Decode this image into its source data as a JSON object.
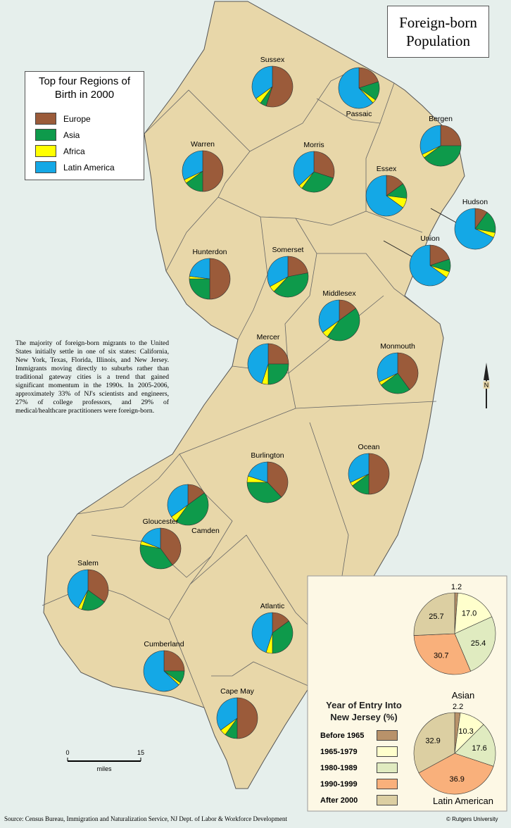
{
  "title": "Foreign-born Population",
  "legend": {
    "title": "Top four Regions of Birth in 2000",
    "regions": [
      {
        "name": "Europe",
        "color": "#9b5b3a"
      },
      {
        "name": "Asia",
        "color": "#0e9a4b"
      },
      {
        "name": "Africa",
        "color": "#ffff00"
      },
      {
        "name": "Latin America",
        "color": "#14a8e6"
      }
    ]
  },
  "counties": [
    {
      "name": "Sussex",
      "values": [
        55,
        5,
        5,
        35
      ]
    },
    {
      "name": "Passaic",
      "values": [
        20,
        15,
        3,
        62
      ]
    },
    {
      "name": "Bergen",
      "values": [
        25,
        40,
        3,
        32
      ]
    },
    {
      "name": "Warren",
      "values": [
        50,
        15,
        3,
        32
      ]
    },
    {
      "name": "Morris",
      "values": [
        30,
        30,
        3,
        37
      ]
    },
    {
      "name": "Essex",
      "values": [
        15,
        12,
        8,
        65
      ]
    },
    {
      "name": "Hudson",
      "values": [
        10,
        18,
        4,
        68
      ]
    },
    {
      "name": "Union",
      "values": [
        20,
        10,
        5,
        65
      ]
    },
    {
      "name": "Hunterdon",
      "values": [
        50,
        25,
        2,
        23
      ]
    },
    {
      "name": "Somerset",
      "values": [
        22,
        40,
        5,
        33
      ]
    },
    {
      "name": "Middlesex",
      "values": [
        15,
        45,
        5,
        35
      ]
    },
    {
      "name": "Mercer",
      "values": [
        25,
        25,
        5,
        45
      ]
    },
    {
      "name": "Monmouth",
      "values": [
        40,
        25,
        3,
        32
      ]
    },
    {
      "name": "Burlington",
      "values": [
        38,
        37,
        5,
        20
      ]
    },
    {
      "name": "Ocean",
      "values": [
        50,
        15,
        3,
        32
      ]
    },
    {
      "name": "Camden",
      "values": [
        15,
        45,
        5,
        35
      ]
    },
    {
      "name": "Gloucester",
      "values": [
        40,
        38,
        3,
        19
      ]
    },
    {
      "name": "Salem",
      "values": [
        35,
        20,
        3,
        42
      ]
    },
    {
      "name": "Atlantic",
      "values": [
        15,
        35,
        5,
        45
      ]
    },
    {
      "name": "Cumberland",
      "values": [
        25,
        10,
        2,
        63
      ]
    },
    {
      "name": "Cape May",
      "values": [
        50,
        10,
        5,
        35
      ]
    }
  ],
  "note": "The majority of foreign-born migrants to the United States initially settle in one of six states: California, New York, Texas, Florida, Illinois, and New Jersey. Immigrants moving directly to suburbs rather than traditional gateway cities is a trend that gained significant momentum in the 1990s. In 2005-2006, approximately 33% of NJ's scientists and engineers, 27% of college professors, and 29% of medical/healthcare practitioners were foreign-born.",
  "entry": {
    "title": "Year of Entry Into New Jersey (%)",
    "periods": [
      {
        "name": "Before 1965",
        "color": "#b8926a"
      },
      {
        "name": "1965-1979",
        "color": "#ffffcc"
      },
      {
        "name": "1980-1989",
        "color": "#e0ebc0"
      },
      {
        "name": "1990-1999",
        "color": "#f9b07b"
      },
      {
        "name": "After 2000",
        "color": "#dccfa2"
      }
    ],
    "charts": [
      {
        "name": "Asian",
        "values": [
          1.2,
          17.0,
          25.4,
          30.7,
          25.7
        ],
        "value_labels": [
          "1.2",
          "17.0",
          "25.4",
          "30.7",
          "25.7"
        ]
      },
      {
        "name": "Latin American",
        "values": [
          2.2,
          10.3,
          17.6,
          36.9,
          32.9
        ],
        "value_labels": [
          "2.2",
          "10.3",
          "17.6",
          "36.9",
          "32.9"
        ]
      }
    ]
  },
  "scale": {
    "ticks": [
      0,
      15
    ],
    "label": "miles"
  },
  "north": "N",
  "source": "Source: Census Bureau, Immigration and Naturalization Service, NJ Dept. of Labor & Workforce Development",
  "credit": "© Rutgers University"
}
